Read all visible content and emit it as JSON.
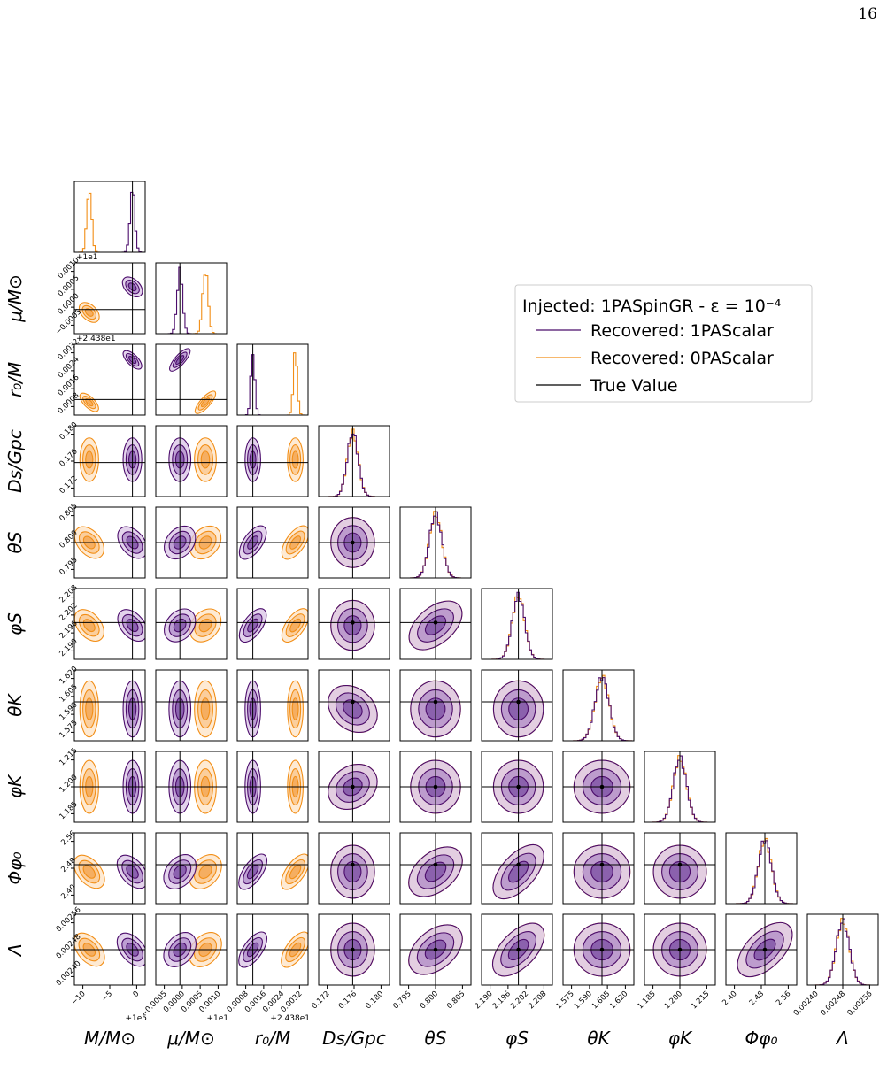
{
  "page": {
    "number": "16"
  },
  "legend": {
    "title": "Injected: 1PASpinGR - ε = 10⁻⁴",
    "entries": [
      {
        "label": "Recovered: 1PAScalar",
        "color": "#4b0c6b"
      },
      {
        "label": "Recovered: 0PAScalar",
        "color": "#f28e16"
      },
      {
        "label": "True Value",
        "color": "#000000"
      }
    ]
  },
  "chart_data": {
    "type": "corner",
    "series": [
      {
        "name": "Recovered: 1PAScalar",
        "color": "#4b0c6b"
      },
      {
        "name": "Recovered: 0PAScalar",
        "color": "#f28e16"
      }
    ],
    "true_value_color": "#000000",
    "parameters": [
      {
        "label": "M/M⊙",
        "ylabel": "",
        "ticks": [
          "−10",
          "−5",
          "0"
        ],
        "offset": "+1e5",
        "true_value": 0,
        "recovered_1PAScalar": 0,
        "recovered_0PAScalar": -11
      },
      {
        "label": "μ/M⊙",
        "ylabel": "μ/M⊙",
        "ticks": [
          "−0.0005",
          "0.0000",
          "0.0005",
          "0.0010"
        ],
        "offset": "+1e1",
        "true_value": 0.0,
        "recovered_1PAScalar": 0.0,
        "recovered_0PAScalar": 0.00075
      },
      {
        "label": "r₀/M",
        "ylabel": "r₀/M",
        "ticks": [
          "0.0008",
          "0.0016",
          "0.0024",
          "0.0032"
        ],
        "offset": "+2.438e1",
        "true_value": 0.0012,
        "recovered_1PAScalar": 0.0012,
        "recovered_0PAScalar": 0.0034
      },
      {
        "label": "Ds/Gpc",
        "ylabel": "Ds/Gpc",
        "ticks": [
          "0.172",
          "0.176",
          "0.180"
        ],
        "true_value": 0.176,
        "recovered_1PAScalar": 0.176,
        "recovered_0PAScalar": 0.176
      },
      {
        "label": "θS",
        "ylabel": "θS",
        "ticks": [
          "0.795",
          "0.800",
          "0.805"
        ],
        "true_value": 0.8,
        "recovered_1PAScalar": 0.8,
        "recovered_0PAScalar": 0.8
      },
      {
        "label": "φS",
        "ylabel": "φS",
        "ticks": [
          "2.190",
          "2.196",
          "2.202",
          "2.208"
        ],
        "true_value": 2.2,
        "recovered_1PAScalar": 2.2,
        "recovered_0PAScalar": 2.2
      },
      {
        "label": "θK",
        "ylabel": "θK",
        "ticks": [
          "1.575",
          "1.590",
          "1.605",
          "1.620"
        ],
        "true_value": 1.6,
        "recovered_1PAScalar": 1.6,
        "recovered_0PAScalar": 1.6
      },
      {
        "label": "φK",
        "ylabel": "φK",
        "ticks": [
          "1.185",
          "1.200",
          "1.215"
        ],
        "true_value": 1.2,
        "recovered_1PAScalar": 1.2,
        "recovered_0PAScalar": 1.2
      },
      {
        "label": "Φφ₀",
        "ylabel": "Φφ₀",
        "ticks": [
          "2.40",
          "2.48",
          "2.56"
        ],
        "true_value": 2.5,
        "recovered_1PAScalar": 2.5,
        "recovered_0PAScalar": 2.5
      },
      {
        "label": "Λ",
        "ylabel": "Λ",
        "ticks": [
          "0.00240",
          "0.00248",
          "0.00256"
        ],
        "true_value": 0.0025,
        "recovered_1PAScalar": 0.0025,
        "recovered_0PAScalar": 0.0025
      }
    ],
    "grid": false,
    "legend_position": "top-right"
  }
}
